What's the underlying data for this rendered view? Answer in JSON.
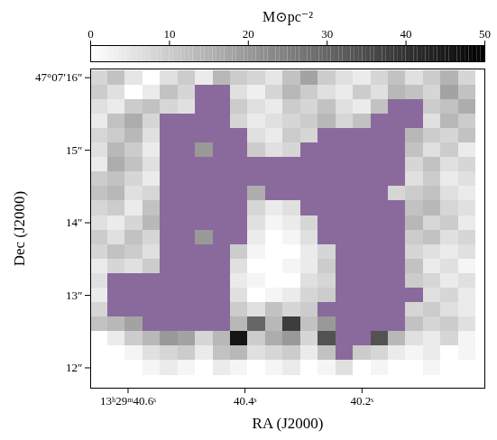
{
  "chart_data": {
    "type": "heatmap",
    "x_label": "RA (J2000)",
    "y_label": "Dec (J2000)",
    "xlim": [
      40.664,
      39.99
    ],
    "ylim": [
      11.72,
      16.12
    ],
    "xticks": [
      {
        "value": 40.6,
        "label": "13ʰ29ᵐ40.6ˢ"
      },
      {
        "value": 40.4,
        "label": "40.4ˢ"
      },
      {
        "value": 40.2,
        "label": "40.2ˢ"
      }
    ],
    "yticks": [
      {
        "value": 16,
        "label": "47°07′16″"
      },
      {
        "value": 15,
        "label": "15″"
      },
      {
        "value": 14,
        "label": "14″"
      },
      {
        "value": 13,
        "label": "13″"
      },
      {
        "value": 12,
        "label": "12″"
      }
    ],
    "color": "#8a6a9c",
    "colorbar": {
      "label": "M⊙pc⁻²",
      "range": [
        0,
        50
      ],
      "ticks": [
        0,
        10,
        20,
        30,
        40,
        50
      ]
    },
    "x": [
      40.65,
      40.62,
      40.59,
      40.56,
      40.53,
      40.5,
      40.47,
      40.44,
      40.41,
      40.38,
      40.35,
      40.32,
      40.29,
      40.26,
      40.23,
      40.2,
      40.17,
      40.14,
      40.11,
      40.08,
      40.05,
      40.02
    ],
    "y": [
      16.0,
      15.8,
      15.6,
      15.4,
      15.2,
      15.0,
      14.8,
      14.6,
      14.4,
      14.2,
      14.0,
      13.8,
      13.6,
      13.4,
      13.2,
      13.0,
      12.8,
      12.6,
      12.4,
      12.2,
      12.0,
      11.8
    ],
    "values": [
      [
        8,
        12,
        5,
        0,
        6,
        10,
        4,
        14,
        10,
        8,
        5,
        12,
        18,
        10,
        6,
        4,
        8,
        12,
        6,
        10,
        15,
        8
      ],
      [
        10,
        6,
        0,
        4,
        12,
        8,
        18,
        16,
        6,
        3,
        8,
        14,
        10,
        6,
        4,
        10,
        6,
        14,
        12,
        8,
        18,
        12
      ],
      [
        6,
        4,
        10,
        12,
        8,
        6,
        20,
        18,
        10,
        6,
        4,
        10,
        8,
        12,
        6,
        4,
        12,
        20,
        18,
        10,
        12,
        16
      ],
      [
        4,
        12,
        16,
        8,
        16,
        18,
        22,
        20,
        8,
        4,
        6,
        8,
        10,
        14,
        8,
        12,
        18,
        22,
        20,
        6,
        14,
        10
      ],
      [
        8,
        10,
        14,
        6,
        20,
        18,
        22,
        20,
        16,
        6,
        4,
        10,
        8,
        18,
        20,
        22,
        20,
        22,
        14,
        10,
        8,
        12
      ],
      [
        6,
        14,
        10,
        4,
        18,
        22,
        20,
        18,
        16,
        10,
        6,
        8,
        18,
        22,
        20,
        18,
        22,
        20,
        12,
        6,
        10,
        4
      ],
      [
        4,
        16,
        12,
        6,
        22,
        20,
        18,
        22,
        18,
        18,
        20,
        22,
        20,
        18,
        22,
        20,
        18,
        22,
        8,
        12,
        6,
        8
      ],
      [
        10,
        12,
        8,
        4,
        20,
        22,
        18,
        20,
        22,
        20,
        18,
        20,
        22,
        18,
        20,
        22,
        20,
        18,
        6,
        10,
        4,
        6
      ],
      [
        12,
        14,
        6,
        8,
        18,
        20,
        22,
        18,
        20,
        16,
        18,
        20,
        22,
        20,
        18,
        20,
        22,
        8,
        10,
        12,
        6,
        4
      ],
      [
        8,
        10,
        4,
        12,
        20,
        18,
        22,
        20,
        18,
        8,
        4,
        6,
        18,
        20,
        22,
        18,
        20,
        22,
        12,
        14,
        8,
        6
      ],
      [
        6,
        4,
        8,
        14,
        18,
        22,
        20,
        18,
        20,
        6,
        2,
        4,
        8,
        20,
        18,
        22,
        20,
        18,
        14,
        8,
        10,
        4
      ],
      [
        10,
        6,
        12,
        8,
        20,
        18,
        20,
        22,
        18,
        4,
        0,
        2,
        6,
        18,
        20,
        22,
        18,
        20,
        10,
        12,
        6,
        8
      ],
      [
        8,
        12,
        10,
        6,
        18,
        20,
        22,
        20,
        10,
        2,
        0,
        0,
        4,
        8,
        20,
        18,
        22,
        20,
        8,
        6,
        4,
        6
      ],
      [
        4,
        8,
        6,
        10,
        20,
        22,
        18,
        20,
        6,
        0,
        0,
        2,
        4,
        10,
        18,
        20,
        22,
        24,
        12,
        4,
        6,
        2
      ],
      [
        6,
        18,
        20,
        22,
        20,
        18,
        22,
        20,
        4,
        2,
        0,
        0,
        6,
        8,
        22,
        20,
        18,
        24,
        10,
        8,
        4,
        6
      ],
      [
        4,
        20,
        22,
        24,
        22,
        20,
        22,
        18,
        6,
        0,
        2,
        4,
        8,
        10,
        24,
        22,
        26,
        24,
        20,
        6,
        8,
        4
      ],
      [
        8,
        24,
        26,
        28,
        34,
        36,
        38,
        30,
        10,
        6,
        12,
        8,
        10,
        18,
        28,
        30,
        34,
        32,
        8,
        10,
        6,
        4
      ],
      [
        12,
        14,
        18,
        30,
        40,
        42,
        40,
        36,
        14,
        30,
        14,
        38,
        12,
        20,
        36,
        40,
        42,
        38,
        12,
        8,
        10,
        6
      ],
      [
        0,
        4,
        10,
        14,
        20,
        18,
        8,
        14,
        46,
        10,
        16,
        20,
        8,
        34,
        46,
        20,
        34,
        14,
        6,
        4,
        8,
        2
      ],
      [
        0,
        0,
        2,
        6,
        8,
        10,
        4,
        12,
        14,
        6,
        8,
        10,
        4,
        12,
        30,
        10,
        8,
        4,
        2,
        4,
        0,
        2
      ],
      [
        0,
        0,
        0,
        2,
        4,
        2,
        0,
        4,
        2,
        0,
        2,
        4,
        0,
        2,
        6,
        0,
        2,
        0,
        0,
        2,
        0,
        0
      ],
      [
        0,
        0,
        0,
        0,
        0,
        0,
        0,
        0,
        0,
        0,
        0,
        0,
        0,
        0,
        0,
        0,
        0,
        0,
        0,
        0,
        0,
        0
      ]
    ],
    "mask": [
      [
        0,
        0,
        0,
        0,
        0,
        0,
        0,
        0,
        0,
        0,
        0,
        0,
        0,
        0,
        0,
        0,
        0,
        0,
        0,
        0,
        0,
        0
      ],
      [
        0,
        0,
        0,
        0,
        0,
        0,
        1,
        1,
        0,
        0,
        0,
        0,
        0,
        0,
        0,
        0,
        0,
        0,
        0,
        0,
        0,
        0
      ],
      [
        0,
        0,
        0,
        0,
        0,
        0,
        1,
        1,
        0,
        0,
        0,
        0,
        0,
        0,
        0,
        0,
        0,
        1,
        1,
        0,
        0,
        0
      ],
      [
        0,
        0,
        0,
        0,
        1,
        1,
        1,
        1,
        0,
        0,
        0,
        0,
        0,
        0,
        0,
        0,
        1,
        1,
        1,
        0,
        0,
        0
      ],
      [
        0,
        0,
        0,
        0,
        1,
        1,
        1,
        1,
        1,
        0,
        0,
        0,
        0,
        1,
        1,
        1,
        1,
        1,
        0,
        0,
        0,
        0
      ],
      [
        0,
        0,
        0,
        0,
        1,
        1,
        0,
        1,
        1,
        0,
        0,
        0,
        1,
        1,
        1,
        1,
        1,
        1,
        0,
        0,
        0,
        0
      ],
      [
        0,
        0,
        0,
        0,
        1,
        1,
        1,
        1,
        1,
        1,
        1,
        1,
        1,
        1,
        1,
        1,
        1,
        1,
        0,
        0,
        0,
        0
      ],
      [
        0,
        0,
        0,
        0,
        1,
        1,
        1,
        1,
        1,
        1,
        1,
        1,
        1,
        1,
        1,
        1,
        1,
        1,
        0,
        0,
        0,
        0
      ],
      [
        0,
        0,
        0,
        0,
        1,
        1,
        1,
        1,
        1,
        0,
        1,
        1,
        1,
        1,
        1,
        1,
        1,
        0,
        0,
        0,
        0,
        0
      ],
      [
        0,
        0,
        0,
        0,
        1,
        1,
        1,
        1,
        1,
        0,
        0,
        0,
        1,
        1,
        1,
        1,
        1,
        1,
        0,
        0,
        0,
        0
      ],
      [
        0,
        0,
        0,
        0,
        1,
        1,
        1,
        1,
        1,
        0,
        0,
        0,
        0,
        1,
        1,
        1,
        1,
        1,
        0,
        0,
        0,
        0
      ],
      [
        0,
        0,
        0,
        0,
        1,
        1,
        0,
        1,
        1,
        0,
        0,
        0,
        0,
        1,
        1,
        1,
        1,
        1,
        0,
        0,
        0,
        0
      ],
      [
        0,
        0,
        0,
        0,
        1,
        1,
        1,
        1,
        0,
        0,
        0,
        0,
        0,
        0,
        1,
        1,
        1,
        1,
        0,
        0,
        0,
        0
      ],
      [
        0,
        0,
        0,
        0,
        1,
        1,
        1,
        1,
        0,
        0,
        0,
        0,
        0,
        0,
        1,
        1,
        1,
        1,
        0,
        0,
        0,
        0
      ],
      [
        0,
        1,
        1,
        1,
        1,
        1,
        1,
        1,
        0,
        0,
        0,
        0,
        0,
        0,
        1,
        1,
        1,
        1,
        0,
        0,
        0,
        0
      ],
      [
        0,
        1,
        1,
        1,
        1,
        1,
        1,
        1,
        0,
        0,
        0,
        0,
        0,
        0,
        1,
        1,
        1,
        1,
        1,
        0,
        0,
        0
      ],
      [
        0,
        1,
        1,
        1,
        1,
        1,
        1,
        1,
        0,
        0,
        0,
        0,
        0,
        1,
        1,
        1,
        1,
        1,
        0,
        0,
        0,
        0
      ],
      [
        0,
        0,
        0,
        1,
        1,
        1,
        1,
        1,
        0,
        0,
        0,
        0,
        0,
        0,
        1,
        1,
        1,
        1,
        0,
        0,
        0,
        0
      ],
      [
        0,
        0,
        0,
        0,
        0,
        0,
        0,
        0,
        0,
        0,
        0,
        0,
        0,
        0,
        1,
        1,
        0,
        0,
        0,
        0,
        0,
        0
      ],
      [
        0,
        0,
        0,
        0,
        0,
        0,
        0,
        0,
        0,
        0,
        0,
        0,
        0,
        0,
        1,
        0,
        0,
        0,
        0,
        0,
        0,
        0
      ],
      [
        0,
        0,
        0,
        0,
        0,
        0,
        0,
        0,
        0,
        0,
        0,
        0,
        0,
        0,
        0,
        0,
        0,
        0,
        0,
        0,
        0,
        0
      ],
      [
        0,
        0,
        0,
        0,
        0,
        0,
        0,
        0,
        0,
        0,
        0,
        0,
        0,
        0,
        0,
        0,
        0,
        0,
        0,
        0,
        0,
        0
      ]
    ]
  }
}
